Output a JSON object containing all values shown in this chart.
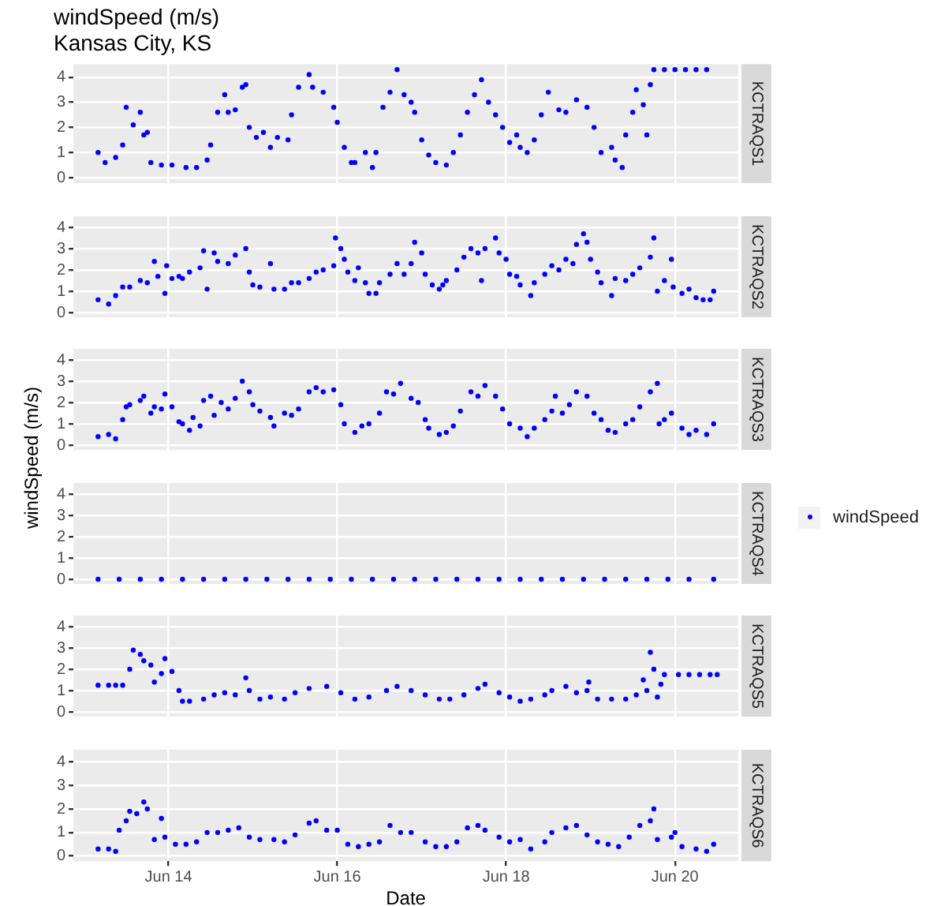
{
  "chart_data": [
    {
      "type": "scatter",
      "title": "windSpeed (m/s)",
      "subtitle": "Kansas City, KS",
      "annotations": [
        "KCTRAQS1"
      ],
      "xlim": [
        "--06-12T21:00",
        "--06-20T18:00"
      ],
      "xticks": [
        {
          "value": "--06-14",
          "label": null
        },
        {
          "value": "--06-16",
          "label": null
        },
        {
          "value": "--06-18",
          "label": null
        },
        {
          "value": "--06-20",
          "label": null
        }
      ],
      "ylim": [
        -0.22,
        4.52
      ],
      "yticks": [
        0,
        1,
        2,
        3,
        4
      ],
      "grid": true,
      "tick_labels": "y",
      "marker": "circle",
      "series": [
        {
          "color": "#0000ff",
          "x": [
            "--06-13T04:00",
            "--06-13T06:00",
            "--06-13T09:00",
            "--06-13T11:00",
            "--06-13T12:00",
            "--06-13T14:00",
            "--06-13T16:00",
            "--06-13T17:00",
            "--06-13T18:00",
            "--06-13T19:00",
            "--06-13T22:00",
            "--06-14T01:00",
            "--06-14T05:00",
            "--06-14T08:00",
            "--06-14T11:00",
            "--06-14T12:00",
            "--06-14T14:00",
            "--06-14T16:00",
            "--06-14T17:00",
            "--06-14T19:00",
            "--06-14T21:00",
            "--06-14T22:00",
            "--06-14T23:00",
            "--06-15T01:00",
            "--06-15T03:00",
            "--06-15T05:00",
            "--06-15T07:00",
            "--06-15T10:00",
            "--06-15T11:00",
            "--06-15T13:00",
            "--06-15T16:00",
            "--06-15T17:00",
            "--06-15T20:00",
            "--06-15T23:00",
            "--06-16T00:00",
            "--06-16T02:00",
            "--06-16T04:00",
            "--06-16T05:00",
            "--06-16T08:00",
            "--06-16T10:00",
            "--06-16T11:00",
            "--06-16T13:00",
            "--06-16T15:00",
            "--06-16T17:00",
            "--06-16T19:00",
            "--06-16T21:00",
            "--06-16T22:00",
            "--06-17T00:00",
            "--06-17T02:00",
            "--06-17T04:00",
            "--06-17T07:00",
            "--06-17T09:00",
            "--06-17T11:00",
            "--06-17T13:00",
            "--06-17T15:00",
            "--06-17T17:00",
            "--06-17T19:00",
            "--06-17T21:00",
            "--06-17T23:00",
            "--06-18T01:00",
            "--06-18T03:00",
            "--06-18T04:00",
            "--06-18T06:00",
            "--06-18T08:00",
            "--06-18T10:00",
            "--06-18T12:00",
            "--06-18T15:00",
            "--06-18T17:00",
            "--06-18T20:00",
            "--06-18T23:00",
            "--06-19T01:00",
            "--06-19T03:00",
            "--06-19T06:00",
            "--06-19T07:00",
            "--06-19T09:00",
            "--06-19T10:00",
            "--06-19T12:00",
            "--06-19T13:00",
            "--06-19T15:00",
            "--06-19T16:00",
            "--06-19T17:00",
            "--06-19T18:00",
            "--06-19T21:00",
            "--06-20T00:00",
            "--06-20T03:00",
            "--06-20T06:00",
            "--06-20T09:00"
          ],
          "values": [
            1.0,
            0.6,
            0.8,
            1.3,
            2.8,
            2.1,
            2.6,
            1.7,
            1.8,
            0.6,
            0.5,
            0.5,
            0.4,
            0.4,
            0.7,
            1.3,
            2.6,
            3.3,
            2.6,
            2.7,
            3.6,
            3.7,
            2.0,
            1.6,
            1.8,
            1.2,
            1.6,
            1.5,
            2.5,
            3.6,
            4.1,
            3.6,
            3.4,
            2.8,
            2.2,
            1.2,
            0.6,
            0.6,
            1.0,
            0.4,
            1.0,
            2.8,
            3.4,
            4.3,
            3.3,
            3.0,
            2.6,
            1.5,
            0.9,
            0.6,
            0.5,
            1.0,
            1.7,
            2.6,
            3.3,
            3.9,
            3.0,
            2.5,
            2.0,
            1.4,
            1.7,
            1.2,
            1.0,
            1.5,
            2.5,
            3.4,
            2.7,
            2.6,
            3.1,
            2.8,
            2.0,
            1.0,
            1.2,
            0.7,
            0.4,
            1.7,
            2.6,
            3.5,
            2.9,
            1.7,
            3.7,
            4.3,
            4.3,
            4.3,
            4.3,
            4.3,
            4.3
          ]
        }
      ]
    },
    {
      "type": "scatter",
      "annotations": [
        "KCTRAQS2"
      ],
      "xlim": [
        "--06-12T21:00",
        "--06-20T18:00"
      ],
      "xticks": [
        {
          "value": "--06-14",
          "label": null
        },
        {
          "value": "--06-16",
          "label": null
        },
        {
          "value": "--06-18",
          "label": null
        },
        {
          "value": "--06-20",
          "label": null
        }
      ],
      "ylim": [
        -0.22,
        4.52
      ],
      "yticks": [
        0,
        1,
        2,
        3,
        4
      ],
      "grid": true,
      "tick_labels": "y",
      "marker": "circle",
      "series": [
        {
          "color": "#0000ff",
          "x": [
            "--06-13T04:00",
            "--06-13T07:00",
            "--06-13T09:00",
            "--06-13T11:00",
            "--06-13T13:00",
            "--06-13T16:00",
            "--06-13T18:00",
            "--06-13T20:00",
            "--06-13T21:00",
            "--06-13T23:00",
            "--06-13T23:30",
            "--06-14T01:00",
            "--06-14T03:00",
            "--06-14T04:00",
            "--06-14T06:00",
            "--06-14T09:00",
            "--06-14T10:00",
            "--06-14T11:00",
            "--06-14T13:00",
            "--06-14T14:00",
            "--06-14T17:00",
            "--06-14T19:00",
            "--06-14T22:00",
            "--06-14T23:00",
            "--06-15T00:00",
            "--06-15T02:00",
            "--06-15T05:00",
            "--06-15T06:00",
            "--06-15T09:00",
            "--06-15T11:00",
            "--06-15T13:00",
            "--06-15T16:00",
            "--06-15T18:00",
            "--06-15T20:00",
            "--06-15T23:00",
            "--06-15T23:30",
            "--06-16T01:00",
            "--06-16T02:00",
            "--06-16T03:00",
            "--06-16T05:00",
            "--06-16T06:00",
            "--06-16T08:00",
            "--06-16T09:00",
            "--06-16T11:00",
            "--06-16T12:00",
            "--06-16T15:00",
            "--06-16T17:00",
            "--06-16T19:00",
            "--06-16T21:00",
            "--06-16T22:00",
            "--06-17T00:00",
            "--06-17T01:00",
            "--06-17T03:00",
            "--06-17T05:00",
            "--06-17T06:00",
            "--06-17T07:00",
            "--06-17T10:00",
            "--06-17T12:00",
            "--06-17T14:00",
            "--06-17T16:00",
            "--06-17T17:00",
            "--06-17T18:00",
            "--06-17T21:00",
            "--06-17T22:00",
            "--06-18T00:00",
            "--06-18T01:00",
            "--06-18T03:00",
            "--06-18T04:00",
            "--06-18T07:00",
            "--06-18T08:00",
            "--06-18T11:00",
            "--06-18T13:00",
            "--06-18T15:00",
            "--06-18T17:00",
            "--06-18T19:00",
            "--06-18T20:00",
            "--06-18T22:00",
            "--06-18T23:00",
            "--06-19T00:00",
            "--06-19T02:00",
            "--06-19T03:00",
            "--06-19T06:00",
            "--06-19T07:00",
            "--06-19T10:00",
            "--06-19T12:00",
            "--06-19T14:00",
            "--06-19T17:00",
            "--06-19T18:00",
            "--06-19T19:00",
            "--06-19T21:00",
            "--06-19T23:00",
            "--06-19T23:30",
            "--06-20T02:00",
            "--06-20T04:00",
            "--06-20T06:00",
            "--06-20T08:00",
            "--06-20T10:00",
            "--06-20T11:00"
          ],
          "values": [
            0.6,
            0.4,
            0.8,
            1.2,
            1.2,
            1.5,
            1.4,
            2.4,
            1.7,
            0.9,
            2.2,
            1.6,
            1.7,
            1.6,
            1.9,
            2.1,
            2.9,
            1.1,
            2.8,
            2.4,
            2.3,
            2.7,
            3.0,
            1.9,
            1.3,
            1.2,
            2.3,
            1.1,
            1.1,
            1.4,
            1.4,
            1.6,
            1.9,
            2.0,
            2.2,
            3.5,
            3.0,
            2.5,
            1.9,
            1.5,
            2.1,
            1.4,
            0.9,
            0.9,
            1.4,
            1.8,
            2.3,
            1.8,
            2.3,
            3.3,
            2.8,
            1.8,
            1.3,
            1.1,
            1.3,
            1.5,
            2.0,
            2.6,
            3.0,
            2.8,
            1.5,
            3.0,
            3.5,
            2.8,
            2.5,
            1.8,
            1.7,
            1.3,
            0.8,
            1.4,
            1.8,
            2.2,
            2.0,
            2.5,
            2.3,
            3.2,
            3.7,
            3.3,
            2.5,
            1.9,
            1.4,
            0.8,
            1.6,
            1.5,
            1.8,
            2.1,
            2.6,
            3.5,
            1.0,
            1.5,
            2.5,
            1.2,
            0.9,
            1.1,
            0.7,
            0.6,
            0.6,
            1.0
          ]
        }
      ]
    },
    {
      "type": "scatter",
      "ylabel": "windSpeed (m/s)",
      "annotations": [
        "KCTRAQS3"
      ],
      "xlim": [
        "--06-12T21:00",
        "--06-20T18:00"
      ],
      "xticks": [
        {
          "value": "--06-14",
          "label": null
        },
        {
          "value": "--06-16",
          "label": null
        },
        {
          "value": "--06-18",
          "label": null
        },
        {
          "value": "--06-20",
          "label": null
        }
      ],
      "ylim": [
        -0.22,
        4.52
      ],
      "yticks": [
        0,
        1,
        2,
        3,
        4
      ],
      "grid": true,
      "tick_labels": "y",
      "marker": "circle",
      "series": [
        {
          "color": "#0000ff",
          "x": [
            "--06-13T04:00",
            "--06-13T07:00",
            "--06-13T09:00",
            "--06-13T11:00",
            "--06-13T12:00",
            "--06-13T13:00",
            "--06-13T16:00",
            "--06-13T17:00",
            "--06-13T19:00",
            "--06-13T20:00",
            "--06-13T22:00",
            "--06-13T23:00",
            "--06-14T01:00",
            "--06-14T03:00",
            "--06-14T04:00",
            "--06-14T06:00",
            "--06-14T07:00",
            "--06-14T09:00",
            "--06-14T10:00",
            "--06-14T12:00",
            "--06-14T13:00",
            "--06-14T15:00",
            "--06-14T17:00",
            "--06-14T19:00",
            "--06-14T21:00",
            "--06-14T23:00",
            "--06-15T00:00",
            "--06-15T02:00",
            "--06-15T05:00",
            "--06-15T06:00",
            "--06-15T09:00",
            "--06-15T11:00",
            "--06-15T13:00",
            "--06-15T16:00",
            "--06-15T18:00",
            "--06-15T20:00",
            "--06-15T23:00",
            "--06-16T01:00",
            "--06-16T02:00",
            "--06-16T05:00",
            "--06-16T07:00",
            "--06-16T09:00",
            "--06-16T12:00",
            "--06-16T14:00",
            "--06-16T16:00",
            "--06-16T18:00",
            "--06-16T21:00",
            "--06-16T23:00",
            "--06-17T01:00",
            "--06-17T02:00",
            "--06-17T05:00",
            "--06-17T07:00",
            "--06-17T09:00",
            "--06-17T11:00",
            "--06-17T14:00",
            "--06-17T16:00",
            "--06-17T18:00",
            "--06-17T21:00",
            "--06-17T23:00",
            "--06-18T01:00",
            "--06-18T04:00",
            "--06-18T06:00",
            "--06-18T08:00",
            "--06-18T11:00",
            "--06-18T13:00",
            "--06-18T14:00",
            "--06-18T16:00",
            "--06-18T18:00",
            "--06-18T20:00",
            "--06-18T23:00",
            "--06-19T01:00",
            "--06-19T03:00",
            "--06-19T05:00",
            "--06-19T07:00",
            "--06-19T10:00",
            "--06-19T12:00",
            "--06-19T14:00",
            "--06-19T17:00",
            "--06-19T19:00",
            "--06-19T19:30",
            "--06-19T21:00",
            "--06-19T23:00",
            "--06-20T02:00",
            "--06-20T04:00",
            "--06-20T06:00",
            "--06-20T09:00",
            "--06-20T11:00"
          ],
          "values": [
            0.4,
            0.5,
            0.3,
            1.2,
            1.8,
            1.9,
            2.1,
            2.3,
            1.5,
            1.8,
            1.7,
            2.4,
            1.8,
            1.1,
            1.0,
            0.7,
            1.3,
            0.9,
            2.1,
            2.3,
            1.4,
            2.0,
            1.7,
            2.2,
            3.0,
            2.5,
            1.9,
            1.6,
            1.3,
            0.9,
            1.5,
            1.4,
            1.7,
            2.5,
            2.7,
            2.5,
            2.6,
            1.9,
            1.0,
            0.6,
            0.9,
            1.0,
            1.5,
            2.5,
            2.4,
            2.9,
            2.2,
            2.0,
            1.2,
            0.8,
            0.5,
            0.6,
            0.9,
            1.6,
            2.5,
            2.3,
            2.8,
            2.3,
            1.7,
            1.0,
            0.8,
            0.4,
            0.8,
            1.2,
            1.6,
            2.3,
            1.5,
            1.9,
            2.5,
            2.3,
            1.5,
            1.2,
            0.7,
            0.6,
            1.0,
            1.2,
            1.8,
            2.5,
            2.9,
            1.0,
            1.2,
            1.5,
            0.8,
            0.5,
            0.7,
            0.5,
            1.0
          ]
        }
      ]
    },
    {
      "type": "scatter",
      "annotations": [
        "KCTRAQS4"
      ],
      "legend": "right",
      "xlim": [
        "--06-12T21:00",
        "--06-20T18:00"
      ],
      "xticks": [
        {
          "value": "--06-14",
          "label": null
        },
        {
          "value": "--06-16",
          "label": null
        },
        {
          "value": "--06-18",
          "label": null
        },
        {
          "value": "--06-20",
          "label": null
        }
      ],
      "ylim": [
        -0.22,
        4.52
      ],
      "yticks": [
        0,
        1,
        2,
        3,
        4
      ],
      "grid": true,
      "tick_labels": "y",
      "marker": "circle",
      "series": [
        {
          "name": "windSpeed",
          "color": "#0000ff",
          "x": [
            "--06-13T04:00",
            "--06-13T10:00",
            "--06-13T16:00",
            "--06-13T22:00",
            "--06-14T04:00",
            "--06-14T10:00",
            "--06-14T16:00",
            "--06-14T22:00",
            "--06-15T04:00",
            "--06-15T10:00",
            "--06-15T16:00",
            "--06-15T22:00",
            "--06-16T04:00",
            "--06-16T10:00",
            "--06-16T16:00",
            "--06-16T22:00",
            "--06-17T04:00",
            "--06-17T10:00",
            "--06-17T16:00",
            "--06-17T22:00",
            "--06-18T04:00",
            "--06-18T10:00",
            "--06-18T16:00",
            "--06-18T22:00",
            "--06-19T04:00",
            "--06-19T10:00",
            "--06-19T16:00",
            "--06-19T22:00",
            "--06-20T04:00",
            "--06-20T11:00"
          ],
          "values": [
            0,
            0,
            0,
            0,
            0,
            0,
            0,
            0,
            0,
            0,
            0,
            0,
            0,
            0,
            0,
            0,
            0,
            0,
            0,
            0,
            0,
            0,
            0,
            0,
            0,
            0,
            0,
            0,
            0,
            0
          ]
        }
      ]
    },
    {
      "type": "scatter",
      "annotations": [
        "KCTRAQS5"
      ],
      "xlim": [
        "--06-12T21:00",
        "--06-20T18:00"
      ],
      "xticks": [
        {
          "value": "--06-14",
          "label": null
        },
        {
          "value": "--06-16",
          "label": null
        },
        {
          "value": "--06-18",
          "label": null
        },
        {
          "value": "--06-20",
          "label": null
        }
      ],
      "ylim": [
        -0.22,
        4.52
      ],
      "yticks": [
        0,
        1,
        2,
        3,
        4
      ],
      "grid": true,
      "tick_labels": "y",
      "marker": "circle",
      "series": [
        {
          "color": "#0000ff",
          "x": [
            "--06-13T04:00",
            "--06-13T07:00",
            "--06-13T09:00",
            "--06-13T11:00",
            "--06-13T13:00",
            "--06-13T14:00",
            "--06-13T16:00",
            "--06-13T17:00",
            "--06-13T19:00",
            "--06-13T20:00",
            "--06-13T22:00",
            "--06-13T23:00",
            "--06-14T01:00",
            "--06-14T03:00",
            "--06-14T04:00",
            "--06-14T06:00",
            "--06-14T10:00",
            "--06-14T13:00",
            "--06-14T16:00",
            "--06-14T19:00",
            "--06-14T22:00",
            "--06-14T23:00",
            "--06-15T02:00",
            "--06-15T05:00",
            "--06-15T09:00",
            "--06-15T12:00",
            "--06-15T16:00",
            "--06-15T21:00",
            "--06-16T01:00",
            "--06-16T05:00",
            "--06-16T09:00",
            "--06-16T14:00",
            "--06-16T17:00",
            "--06-16T21:00",
            "--06-17T01:00",
            "--06-17T05:00",
            "--06-17T08:00",
            "--06-17T12:00",
            "--06-17T16:00",
            "--06-17T18:00",
            "--06-17T22:00",
            "--06-18T01:00",
            "--06-18T04:00",
            "--06-18T07:00",
            "--06-18T11:00",
            "--06-18T13:00",
            "--06-18T17:00",
            "--06-18T20:00",
            "--06-18T23:00",
            "--06-18T23:30",
            "--06-19T02:00",
            "--06-19T06:00",
            "--06-19T10:00",
            "--06-19T13:00",
            "--06-19T15:00",
            "--06-19T16:00",
            "--06-19T17:00",
            "--06-19T18:00",
            "--06-19T19:00",
            "--06-19T20:00",
            "--06-19T21:00",
            "--06-20T01:00",
            "--06-20T04:00",
            "--06-20T07:00",
            "--06-20T10:00",
            "--06-20T12:00"
          ],
          "values": [
            1.25,
            1.25,
            1.25,
            1.25,
            2.0,
            2.9,
            2.7,
            2.4,
            2.2,
            1.4,
            1.8,
            2.5,
            1.9,
            1.0,
            0.5,
            0.5,
            0.6,
            0.8,
            0.9,
            0.8,
            1.6,
            1.0,
            0.6,
            0.7,
            0.6,
            0.9,
            1.1,
            1.2,
            0.9,
            0.6,
            0.7,
            1.0,
            1.2,
            1.0,
            0.8,
            0.6,
            0.6,
            0.8,
            1.1,
            1.3,
            0.9,
            0.7,
            0.5,
            0.6,
            0.8,
            1.0,
            1.2,
            0.9,
            1.0,
            1.4,
            0.6,
            0.6,
            0.6,
            0.8,
            1.5,
            1.0,
            2.8,
            2.0,
            0.7,
            1.3,
            1.75,
            1.75,
            1.75,
            1.75,
            1.75,
            1.75
          ]
        }
      ]
    },
    {
      "type": "scatter",
      "xlabel": "Date",
      "annotations": [
        "KCTRAQS6"
      ],
      "xlim": [
        "--06-12T21:00",
        "--06-20T18:00"
      ],
      "xticks": [
        {
          "value": "--06-14",
          "label": "Jun 14"
        },
        {
          "value": "--06-16",
          "label": "Jun 16"
        },
        {
          "value": "--06-18",
          "label": "Jun 18"
        },
        {
          "value": "--06-20",
          "label": "Jun 20"
        }
      ],
      "ylim": [
        -0.22,
        4.52
      ],
      "yticks": [
        0,
        1,
        2,
        3,
        4
      ],
      "grid": true,
      "marker": "circle",
      "series": [
        {
          "color": "#0000ff",
          "x": [
            "--06-13T04:00",
            "--06-13T07:00",
            "--06-13T09:00",
            "--06-13T10:00",
            "--06-13T12:00",
            "--06-13T13:00",
            "--06-13T15:00",
            "--06-13T17:00",
            "--06-13T18:00",
            "--06-13T20:00",
            "--06-13T22:00",
            "--06-13T23:00",
            "--06-14T02:00",
            "--06-14T05:00",
            "--06-14T08:00",
            "--06-14T11:00",
            "--06-14T14:00",
            "--06-14T17:00",
            "--06-14T20:00",
            "--06-14T23:00",
            "--06-15T02:00",
            "--06-15T06:00",
            "--06-15T09:00",
            "--06-15T12:00",
            "--06-15T16:00",
            "--06-15T18:00",
            "--06-15T21:00",
            "--06-16T00:00",
            "--06-16T03:00",
            "--06-16T06:00",
            "--06-16T09:00",
            "--06-16T12:00",
            "--06-16T15:00",
            "--06-16T18:00",
            "--06-16T21:00",
            "--06-17T01:00",
            "--06-17T04:00",
            "--06-17T07:00",
            "--06-17T10:00",
            "--06-17T13:00",
            "--06-17T16:00",
            "--06-17T18:00",
            "--06-17T22:00",
            "--06-18T01:00",
            "--06-18T04:00",
            "--06-18T07:00",
            "--06-18T11:00",
            "--06-18T13:00",
            "--06-18T17:00",
            "--06-18T20:00",
            "--06-18T23:00",
            "--06-19T02:00",
            "--06-19T05:00",
            "--06-19T08:00",
            "--06-19T11:00",
            "--06-19T14:00",
            "--06-19T17:00",
            "--06-19T18:00",
            "--06-19T19:00",
            "--06-19T23:00",
            "--06-20T00:00",
            "--06-20T02:00",
            "--06-20T06:00",
            "--06-20T09:00",
            "--06-20T11:00"
          ],
          "values": [
            0.3,
            0.3,
            0.2,
            1.1,
            1.5,
            1.9,
            1.8,
            2.3,
            2.0,
            0.7,
            1.6,
            0.8,
            0.5,
            0.5,
            0.6,
            1.0,
            1.0,
            1.1,
            1.2,
            0.8,
            0.7,
            0.7,
            0.6,
            0.9,
            1.4,
            1.5,
            1.1,
            1.1,
            0.5,
            0.4,
            0.5,
            0.6,
            1.3,
            1.0,
            1.0,
            0.6,
            0.4,
            0.4,
            0.6,
            1.2,
            1.3,
            1.1,
            0.8,
            0.6,
            0.7,
            0.3,
            0.6,
            1.0,
            1.2,
            1.3,
            0.9,
            0.6,
            0.5,
            0.4,
            0.8,
            1.3,
            1.5,
            2.0,
            0.7,
            0.8,
            1.0,
            0.4,
            0.3,
            0.2,
            0.5
          ]
        }
      ]
    }
  ]
}
